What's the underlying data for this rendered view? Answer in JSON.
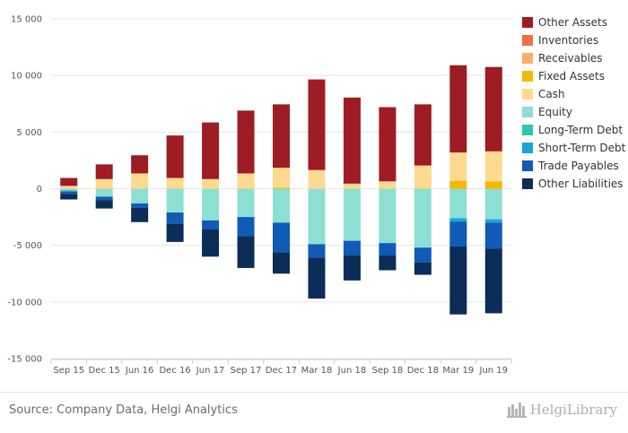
{
  "chart_data": {
    "type": "bar",
    "stacked": true,
    "categories": [
      "Sep 15",
      "Dec 15",
      "Jun 16",
      "Dec 16",
      "Jun 17",
      "Sep 17",
      "Dec 17",
      "Mar 18",
      "Jun 18",
      "Sep 18",
      "Dec 18",
      "Mar 19",
      "Jun 19"
    ],
    "y_ticks": [
      15000,
      10000,
      5000,
      0,
      -5000,
      -10000,
      -15000
    ],
    "y_tick_labels": [
      "15 000",
      "10 000",
      "5 000",
      "0",
      "-5 000",
      "-10 000",
      "-15 000"
    ],
    "ylim": [
      -15000,
      15000
    ],
    "grid": true,
    "legend_position": "right",
    "positive_series": [
      {
        "name": "Inventories",
        "color": "#f46d43",
        "values": [
          0,
          0,
          0,
          0,
          0,
          0,
          0,
          0,
          0,
          0,
          0,
          0,
          0
        ]
      },
      {
        "name": "Receivables",
        "color": "#fdae61",
        "values": [
          0,
          0,
          0,
          0,
          0,
          0,
          0,
          0,
          0,
          0,
          0,
          0,
          0
        ]
      },
      {
        "name": "Fixed Assets",
        "color": "#f5b800",
        "values": [
          0,
          0,
          0,
          0,
          0,
          0,
          100,
          0,
          0,
          0,
          0,
          700,
          650
        ]
      },
      {
        "name": "Cash",
        "color": "#fed98e",
        "values": [
          250,
          850,
          1350,
          950,
          850,
          1350,
          1750,
          1650,
          450,
          650,
          2050,
          2500,
          2650
        ]
      },
      {
        "name": "Other Assets",
        "color": "#9e1c24",
        "values": [
          700,
          1300,
          1600,
          3750,
          5000,
          5550,
          5600,
          8000,
          7600,
          6550,
          5400,
          7700,
          7450
        ]
      }
    ],
    "negative_series": [
      {
        "name": "Equity",
        "color": "#8ddfd3",
        "values": [
          -150,
          -700,
          -1300,
          -2100,
          -2800,
          -2500,
          -3000,
          -4900,
          -4600,
          -4800,
          -5200,
          -2600,
          -2700
        ]
      },
      {
        "name": "Long-Term Debt",
        "color": "#2ec4b6",
        "values": [
          0,
          0,
          0,
          0,
          0,
          0,
          0,
          0,
          0,
          0,
          0,
          0,
          0
        ]
      },
      {
        "name": "Short-Term Debt",
        "color": "#1aa6d8",
        "values": [
          -100,
          0,
          0,
          0,
          0,
          0,
          0,
          0,
          0,
          0,
          0,
          -300,
          -300
        ]
      },
      {
        "name": "Trade Payables",
        "color": "#0f5bb5",
        "values": [
          -200,
          -300,
          -400,
          -1000,
          -800,
          -1700,
          -2600,
          -1200,
          -1300,
          -1100,
          -1300,
          -2200,
          -2300
        ]
      },
      {
        "name": "Other Liabilities",
        "color": "#0b2d57",
        "values": [
          -500,
          -750,
          -1250,
          -1600,
          -2400,
          -2800,
          -1900,
          -3600,
          -2200,
          -1300,
          -1100,
          -6000,
          -5700
        ]
      }
    ],
    "legend_entries": [
      {
        "name": "Other Assets",
        "color": "#9e1c24"
      },
      {
        "name": "Inventories",
        "color": "#f46d43"
      },
      {
        "name": "Receivables",
        "color": "#fdae61"
      },
      {
        "name": "Fixed Assets",
        "color": "#f5b800"
      },
      {
        "name": "Cash",
        "color": "#fed98e"
      },
      {
        "name": "Equity",
        "color": "#8ddfd3"
      },
      {
        "name": "Long-Term Debt",
        "color": "#2ec4b6"
      },
      {
        "name": "Short-Term Debt",
        "color": "#1aa6d8"
      },
      {
        "name": "Trade Payables",
        "color": "#0f5bb5"
      },
      {
        "name": "Other Liabilities",
        "color": "#0b2d57"
      }
    ]
  },
  "footer": {
    "source": "Source: Company Data, Helgi Analytics",
    "brand": "HelgiLibrary",
    "brand_icon": "helgi-library-logo-icon"
  }
}
